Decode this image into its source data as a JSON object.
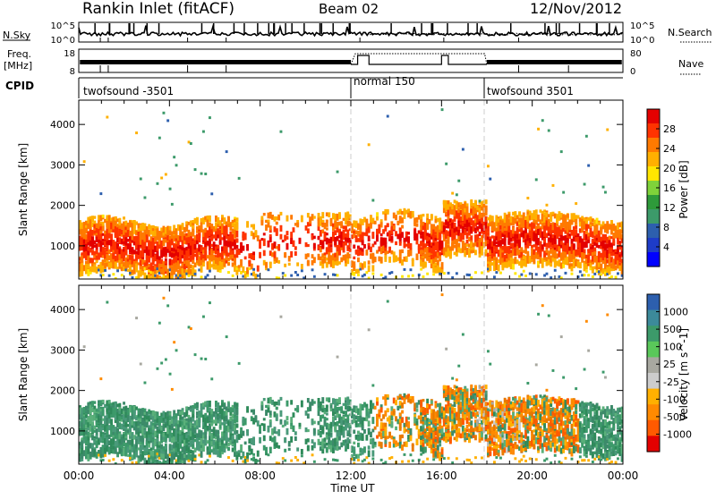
{
  "header": {
    "station": "Rankin Inlet (fitACF)",
    "beam": "Beam 02",
    "date": "12/Nov/2012"
  },
  "top_panels": {
    "nsky_label": "N.Sky",
    "nsky_ticks": [
      "10^5",
      "10^0"
    ],
    "nsearch_label": "N.Search",
    "nsearch_ticks": [
      "10^5",
      "10^0"
    ],
    "freq_label_line1": "Freq.",
    "freq_label_line2": "[MHz]",
    "freq_ticks": [
      "18",
      "8"
    ],
    "nave_label": "Nave",
    "nave_ticks": [
      "80",
      "0"
    ],
    "cpid_label": "CPID",
    "cpid_segments": [
      {
        "label": "twofsound -3501",
        "start_hour": 0,
        "end_hour": 12
      },
      {
        "label": "normal 150",
        "start_hour": 12,
        "end_hour": 18
      },
      {
        "label": "twofsound 3501",
        "start_hour": 18,
        "end_hour": 24
      }
    ]
  },
  "power_panel": {
    "ylabel": "Slant Range [km]",
    "colorbar_label": "Power [dB]",
    "colorbar_ticks": [
      "28",
      "24",
      "20",
      "16",
      "12",
      "8",
      "4"
    ],
    "colorbar_colors": [
      "#e40000",
      "#ff3300",
      "#ff7a00",
      "#ffb000",
      "#ffe600",
      "#7fd23a",
      "#2e9a3a",
      "#3c9a6a",
      "#2d5fae",
      "#1e3cc8",
      "#0000ff"
    ]
  },
  "velocity_panel": {
    "ylabel": "Slant Range [km]",
    "colorbar_label": "Velocity [m s^-1]",
    "colorbar_ticks": [
      "1000",
      "500",
      "100",
      "25",
      "-25",
      "-100",
      "-500",
      "-1000"
    ],
    "colorbar_colors": [
      "#2d5fae",
      "#3c8a9a",
      "#3c9a6a",
      "#5ac85a",
      "#a8a8a0",
      "#cccccc",
      "#ffb000",
      "#ff8a00",
      "#ff5a00",
      "#e40000"
    ]
  },
  "x_axis": {
    "label": "Time UT",
    "ticks": [
      "00:00",
      "04:00",
      "08:00",
      "12:00",
      "16:00",
      "20:00",
      "00:00"
    ]
  },
  "chart_data": [
    {
      "type": "heatmap",
      "title": "Rankin Inlet (fitACF)",
      "xlabel": "Time UT",
      "ylabel": "Slant Range [km]",
      "xlim_hours": [
        0,
        24
      ],
      "ylim_km": [
        180,
        4600
      ],
      "yticks": [
        1000,
        2000,
        3000,
        4000
      ],
      "colorbar": {
        "label": "Power [dB]",
        "range": [
          0,
          30
        ],
        "ticks": [
          4,
          8,
          12,
          16,
          20,
          24,
          28
        ]
      },
      "dashed_vertical_lines_hours": [
        12,
        18
      ]
    },
    {
      "type": "heatmap",
      "xlabel": "Time UT",
      "ylabel": "Slant Range [km]",
      "xlim_hours": [
        0,
        24
      ],
      "ylim_km": [
        180,
        4600
      ],
      "yticks": [
        1000,
        2000,
        3000,
        4000
      ],
      "colorbar": {
        "label": "Velocity [m s^-1]",
        "ticks": [
          1000,
          500,
          100,
          25,
          -25,
          -100,
          -500,
          -1000
        ]
      },
      "dashed_vertical_lines_hours": [
        12,
        18
      ]
    }
  ]
}
